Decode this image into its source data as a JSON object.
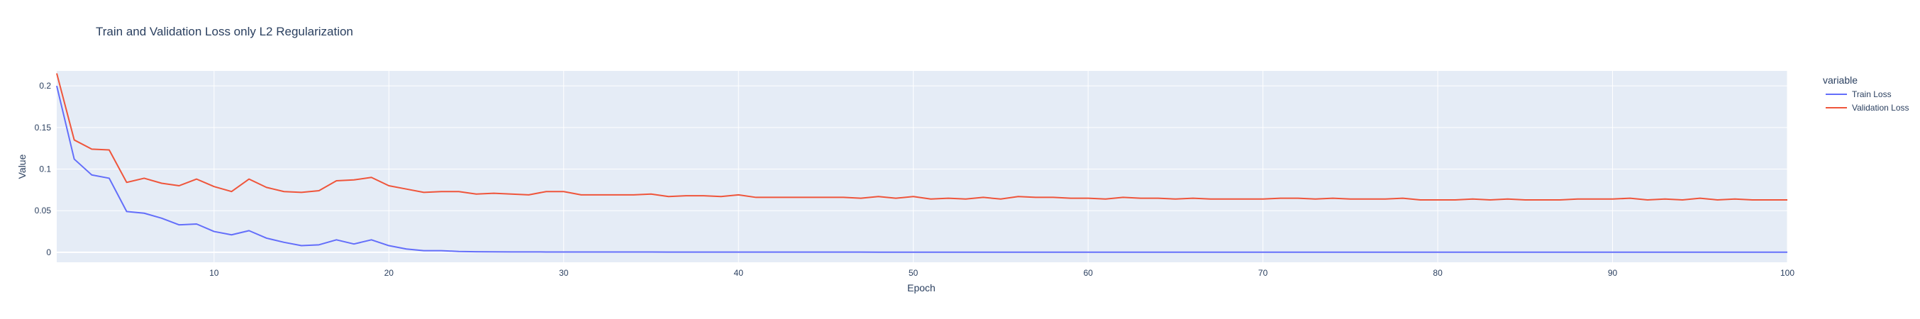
{
  "chart_data": {
    "type": "line",
    "title": "Train and Validation Loss only L2 Regularization",
    "xlabel": "Epoch",
    "ylabel": "Value",
    "xlim": [
      1,
      100
    ],
    "ylim": [
      -0.012,
      0.218
    ],
    "xticks": [
      10,
      20,
      30,
      40,
      50,
      60,
      70,
      80,
      90,
      100
    ],
    "yticks": [
      0,
      0.05,
      0.1,
      0.15,
      0.2
    ],
    "ytick_labels": [
      "0",
      "0.05",
      "0.1",
      "0.15",
      "0.2"
    ],
    "grid": true,
    "legend": {
      "title": "variable",
      "placement": "right"
    },
    "x": [
      1,
      2,
      3,
      4,
      5,
      6,
      7,
      8,
      9,
      10,
      11,
      12,
      13,
      14,
      15,
      16,
      17,
      18,
      19,
      20,
      21,
      22,
      23,
      24,
      25,
      26,
      27,
      28,
      29,
      30,
      31,
      32,
      33,
      34,
      35,
      36,
      37,
      38,
      39,
      40,
      41,
      42,
      43,
      44,
      45,
      46,
      47,
      48,
      49,
      50,
      51,
      52,
      53,
      54,
      55,
      56,
      57,
      58,
      59,
      60,
      61,
      62,
      63,
      64,
      65,
      66,
      67,
      68,
      69,
      70,
      71,
      72,
      73,
      74,
      75,
      76,
      77,
      78,
      79,
      80,
      81,
      82,
      83,
      84,
      85,
      86,
      87,
      88,
      89,
      90,
      91,
      92,
      93,
      94,
      95,
      96,
      97,
      98,
      99,
      100
    ],
    "series": [
      {
        "name": "Train Loss",
        "color": "#636efa",
        "values": [
          0.2,
          0.112,
          0.093,
          0.089,
          0.049,
          0.047,
          0.041,
          0.033,
          0.034,
          0.025,
          0.021,
          0.026,
          0.017,
          0.012,
          0.008,
          0.009,
          0.015,
          0.01,
          0.015,
          0.008,
          0.004,
          0.002,
          0.002,
          0.001,
          0.0007,
          0.0006,
          0.0005,
          0.0005,
          0.0004,
          0.0004,
          0.0004,
          0.0003,
          0.0003,
          0.0003,
          0.0003,
          0.0002,
          0.0002,
          0.0002,
          0.0002,
          0.0002,
          0.0002,
          0.0002,
          0.0002,
          0.0002,
          0.0002,
          0.0002,
          0.0002,
          0.0001,
          0.0001,
          0.0001,
          0.0001,
          0.0001,
          0.0001,
          0.0001,
          0.0001,
          0.0001,
          0.0001,
          0.0001,
          0.0001,
          0.0001,
          0.0001,
          0.0001,
          0.0001,
          0.0001,
          0.0001,
          0.0001,
          0.0001,
          0.0001,
          0.0001,
          0.0001,
          0.0001,
          0.0001,
          0.0001,
          0.0001,
          0.0001,
          0.0001,
          0.0001,
          0.0001,
          0.0001,
          0.0001,
          0.0001,
          0.0001,
          0.0001,
          0.0001,
          0.0001,
          0.0001,
          0.0001,
          0.0001,
          0.0001,
          0.0001,
          0.0001,
          0.0001,
          0.0001,
          0.0001,
          0.0001,
          0.0001,
          0.0001,
          0.0001,
          0.0001,
          0.0001
        ]
      },
      {
        "name": "Validation Loss",
        "color": "#ef553b",
        "values": [
          0.215,
          0.135,
          0.124,
          0.123,
          0.084,
          0.089,
          0.083,
          0.08,
          0.088,
          0.079,
          0.073,
          0.088,
          0.078,
          0.073,
          0.072,
          0.074,
          0.086,
          0.087,
          0.09,
          0.08,
          0.076,
          0.072,
          0.073,
          0.073,
          0.07,
          0.071,
          0.07,
          0.069,
          0.073,
          0.073,
          0.069,
          0.069,
          0.069,
          0.069,
          0.07,
          0.067,
          0.068,
          0.068,
          0.067,
          0.069,
          0.066,
          0.066,
          0.066,
          0.066,
          0.066,
          0.066,
          0.065,
          0.067,
          0.065,
          0.067,
          0.064,
          0.065,
          0.064,
          0.066,
          0.064,
          0.067,
          0.066,
          0.066,
          0.065,
          0.065,
          0.064,
          0.066,
          0.065,
          0.065,
          0.064,
          0.065,
          0.064,
          0.064,
          0.064,
          0.064,
          0.065,
          0.065,
          0.064,
          0.065,
          0.064,
          0.064,
          0.064,
          0.065,
          0.063,
          0.063,
          0.063,
          0.064,
          0.063,
          0.064,
          0.063,
          0.063,
          0.063,
          0.064,
          0.064,
          0.064,
          0.065,
          0.063,
          0.064,
          0.063,
          0.065,
          0.063,
          0.064,
          0.063,
          0.063,
          0.063
        ]
      }
    ]
  }
}
